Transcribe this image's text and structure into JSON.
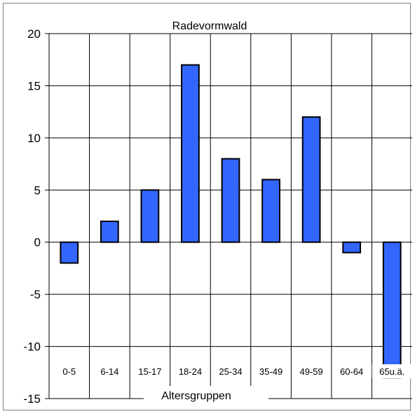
{
  "chart_data": {
    "type": "bar",
    "title": "Radevormwald",
    "xlabel": "Altersgruppen",
    "ylabel": "",
    "categories": [
      "0-5",
      "6-14",
      "15-17",
      "18-24",
      "25-34",
      "35-49",
      "49-59",
      "60-64",
      "65u.ä."
    ],
    "values": [
      -2,
      2,
      5,
      17,
      8,
      6,
      12,
      -1,
      -13
    ],
    "ylim": [
      -15,
      20
    ],
    "ytick_labels": [
      "20",
      "15",
      "10",
      "5",
      "0",
      "-5",
      "-10",
      "-15"
    ],
    "yticks": [
      20,
      15,
      10,
      5,
      0,
      -5,
      -10,
      -15
    ],
    "grid": true,
    "legend": "none",
    "bar_color": "#3366ff",
    "bar_edge_color": "#000000"
  }
}
